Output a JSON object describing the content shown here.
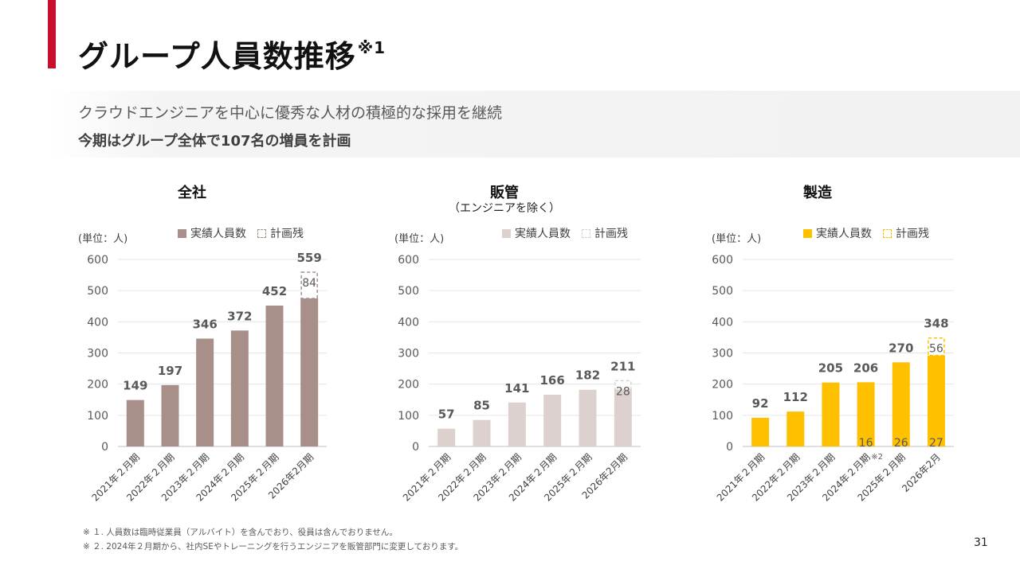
{
  "title": "グループ人員数推移",
  "title_note": "※1",
  "subtitle_1": "クラウドエンジニアを中心に優秀な人材の積極的な採用を継続",
  "subtitle_2": "今期はグループ全体で107名の増員を計画",
  "legend": {
    "actual": "実績人員数",
    "plan": "計画残"
  },
  "unit_label": "(単位：人)",
  "colors": {
    "accent": "#c8102e",
    "all": "#a88f8a",
    "admin": "#dcd1ce",
    "mfg": "#ffc000"
  },
  "footnotes": [
    "※ １. 人員数は臨時従業員（アルバイト）を含んでおり、役員は含んでおりません。",
    "※ ２. 2024年２月期から、社内SEやトレーニングを行うエンジニアを販管部門に変更しております。"
  ],
  "page_number": "31",
  "chart_data": [
    {
      "type": "bar",
      "title": "全社",
      "categories": [
        "2021年２月期",
        "2022年２月期",
        "2023年２月期",
        "2024年２月期",
        "2025年２月期",
        "2026年2月期"
      ],
      "ylim": [
        0,
        600
      ],
      "yticks": [
        0,
        100,
        200,
        300,
        400,
        500,
        600
      ],
      "series": [
        {
          "name": "実績人員数",
          "values": [
            149,
            197,
            346,
            372,
            452,
            475
          ]
        },
        {
          "name": "計画残",
          "values": [
            null,
            null,
            null,
            null,
            null,
            84
          ]
        }
      ],
      "total_labels": [
        "149",
        "197",
        "346",
        "372",
        "452",
        "559"
      ],
      "inner_labels": [
        null,
        null,
        null,
        null,
        null,
        null
      ],
      "grid": true,
      "legend_position": "top"
    },
    {
      "type": "bar",
      "title": "販管",
      "subtitle": "（エンジニアを除く）",
      "categories": [
        "2021年２月期",
        "2022年２月期",
        "2023年２月期",
        "2024年２月期",
        "2025年２月期",
        "2026年2月期"
      ],
      "ylim": [
        0,
        600
      ],
      "yticks": [
        0,
        100,
        200,
        300,
        400,
        500,
        600
      ],
      "series": [
        {
          "name": "実績人員数",
          "values": [
            57,
            85,
            141,
            166,
            182,
            183
          ]
        },
        {
          "name": "計画残",
          "values": [
            null,
            null,
            null,
            null,
            null,
            28
          ]
        }
      ],
      "total_labels": [
        "57",
        "85",
        "141",
        "166",
        "182",
        "211"
      ],
      "inner_labels": [
        null,
        null,
        null,
        null,
        null,
        null
      ],
      "grid": true,
      "legend_position": "top"
    },
    {
      "type": "bar",
      "title": "製造",
      "categories": [
        "2021年２月期",
        "2022年２月期",
        "2023年２月期",
        "2024年２月期",
        "2025年２月期",
        "2026年2月"
      ],
      "ylim": [
        0,
        600
      ],
      "yticks": [
        0,
        100,
        200,
        300,
        400,
        500,
        600
      ],
      "series": [
        {
          "name": "実績人員数",
          "values": [
            92,
            112,
            205,
            206,
            270,
            292
          ]
        },
        {
          "name": "計画残",
          "values": [
            null,
            null,
            null,
            null,
            null,
            56
          ]
        }
      ],
      "total_labels": [
        "92",
        "112",
        "205",
        "206",
        "270",
        "348"
      ],
      "inner_labels": [
        null,
        null,
        null,
        "16",
        "26",
        "27"
      ],
      "inner_note": "※2",
      "grid": true,
      "legend_position": "top"
    }
  ]
}
